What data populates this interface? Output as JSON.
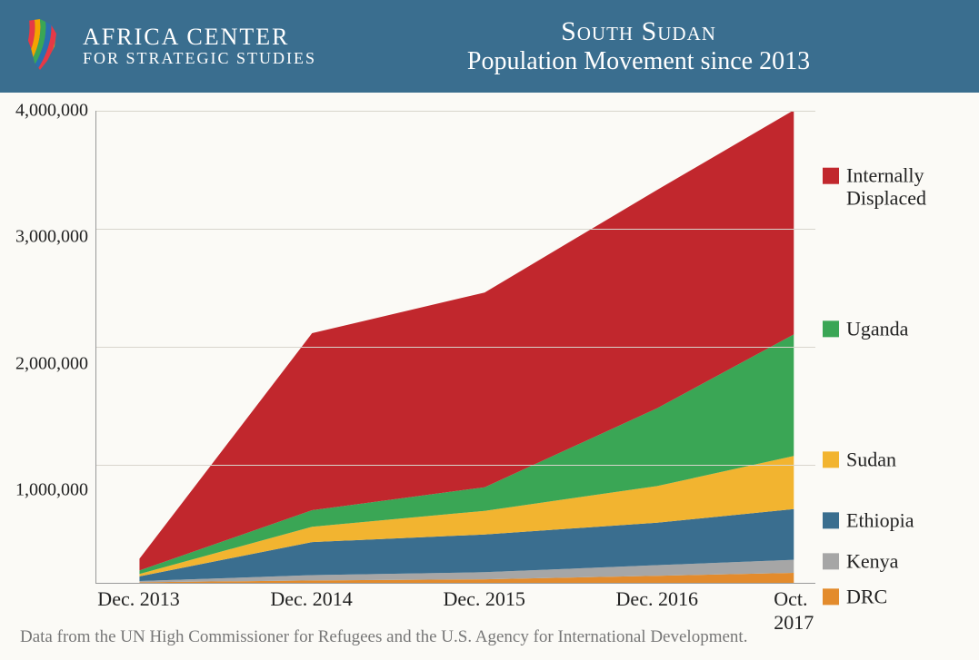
{
  "header": {
    "org_name": "AFRICA CENTER",
    "org_sub": "FOR STRATEGIC STUDIES",
    "title_main": "South Sudan",
    "title_sub": "Population Movement since 2013",
    "header_bg": "#3a6e8f",
    "logo_stripes": [
      "#e63946",
      "#f4a300",
      "#3aa655",
      "#2a6fb0",
      "#e63946",
      "#f4a300"
    ]
  },
  "chart": {
    "type": "area-stacked",
    "background_color": "#fbfaf6",
    "grid_color": "#d8d5cc",
    "axis_color": "#999999",
    "text_color": "#222222",
    "ylim": [
      0,
      4000000
    ],
    "y_ticks": [
      1000000,
      2000000,
      3000000,
      4000000
    ],
    "y_tick_labels": [
      "1,000,000",
      "2,000,000",
      "3,000,000",
      "4,000,000"
    ],
    "x_categories": [
      "Dec. 2013",
      "Dec. 2014",
      "Dec. 2015",
      "Dec. 2016",
      "Oct. 2017"
    ],
    "x_positions_pct": [
      6,
      30,
      54,
      78,
      97
    ],
    "series": [
      {
        "key": "drc",
        "label": "DRC",
        "color": "#e38b2c",
        "values": [
          5000,
          20000,
          30000,
          60000,
          85000
        ],
        "legend_top_pct": 96
      },
      {
        "key": "kenya",
        "label": "Kenya",
        "color": "#a6a6a6",
        "values": [
          10000,
          45000,
          60000,
          90000,
          110000
        ],
        "legend_top_pct": 89
      },
      {
        "key": "ethiopia",
        "label": "Ethiopia",
        "color": "#3a6e8f",
        "values": [
          40000,
          280000,
          320000,
          360000,
          430000
        ],
        "legend_top_pct": 81
      },
      {
        "key": "sudan",
        "label": "Sudan",
        "color": "#f2b430",
        "values": [
          20000,
          130000,
          200000,
          310000,
          450000
        ],
        "legend_top_pct": 69
      },
      {
        "key": "uganda",
        "label": "Uganda",
        "color": "#3aa655",
        "values": [
          30000,
          140000,
          200000,
          660000,
          1030000
        ],
        "legend_top_pct": 43
      },
      {
        "key": "idp",
        "label": "Internally Displaced",
        "color": "#c1272d",
        "values": [
          100000,
          1500000,
          1650000,
          1850000,
          1900000
        ],
        "legend_top_pct": 15
      }
    ],
    "label_fontsize": 22,
    "tick_fontsize": 20
  },
  "source": "Data from the UN High Commissioner for Refugees and the U.S. Agency for International Development."
}
